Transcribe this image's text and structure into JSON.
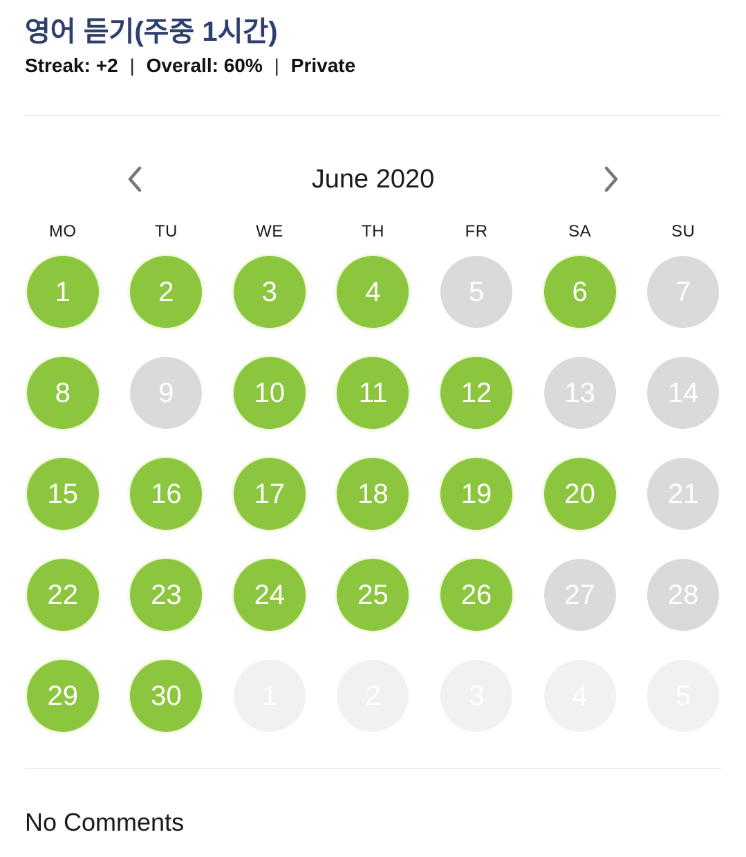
{
  "header": {
    "title": "영어 듣기(주중 1시간)",
    "stats": {
      "streak": "Streak: +2",
      "overall": "Overall: 60%",
      "privacy": "Private",
      "separator": "|"
    }
  },
  "calendar": {
    "month_title": "June 2020",
    "nav": {
      "prev_icon": "chevron-left-icon",
      "next_icon": "chevron-right-icon"
    },
    "weekdays": [
      "MO",
      "TU",
      "WE",
      "TH",
      "FR",
      "SA",
      "SU"
    ],
    "days": [
      {
        "day": "1",
        "state": "done"
      },
      {
        "day": "2",
        "state": "done"
      },
      {
        "day": "3",
        "state": "done"
      },
      {
        "day": "4",
        "state": "done"
      },
      {
        "day": "5",
        "state": "missed"
      },
      {
        "day": "6",
        "state": "done"
      },
      {
        "day": "7",
        "state": "missed"
      },
      {
        "day": "8",
        "state": "done"
      },
      {
        "day": "9",
        "state": "missed"
      },
      {
        "day": "10",
        "state": "done"
      },
      {
        "day": "11",
        "state": "done"
      },
      {
        "day": "12",
        "state": "done"
      },
      {
        "day": "13",
        "state": "missed"
      },
      {
        "day": "14",
        "state": "missed"
      },
      {
        "day": "15",
        "state": "done"
      },
      {
        "day": "16",
        "state": "done"
      },
      {
        "day": "17",
        "state": "done"
      },
      {
        "day": "18",
        "state": "done"
      },
      {
        "day": "19",
        "state": "done"
      },
      {
        "day": "20",
        "state": "done"
      },
      {
        "day": "21",
        "state": "missed"
      },
      {
        "day": "22",
        "state": "done"
      },
      {
        "day": "23",
        "state": "done"
      },
      {
        "day": "24",
        "state": "done"
      },
      {
        "day": "25",
        "state": "done"
      },
      {
        "day": "26",
        "state": "done"
      },
      {
        "day": "27",
        "state": "missed"
      },
      {
        "day": "28",
        "state": "missed"
      },
      {
        "day": "29",
        "state": "done"
      },
      {
        "day": "30",
        "state": "done"
      },
      {
        "day": "1",
        "state": "next-month"
      },
      {
        "day": "2",
        "state": "next-month"
      },
      {
        "day": "3",
        "state": "next-month"
      },
      {
        "day": "4",
        "state": "next-month"
      },
      {
        "day": "5",
        "state": "next-month"
      }
    ]
  },
  "comments": {
    "empty_label": "No Comments"
  },
  "colors": {
    "title": "#2e3e6d",
    "done": "#8cc63e",
    "missed": "#dadada",
    "next_month": "#f1f1f1",
    "day_text": "#ffffff",
    "chevron": "#75787b",
    "divider": "#dcdcdc",
    "text": "#1a1a1a"
  }
}
